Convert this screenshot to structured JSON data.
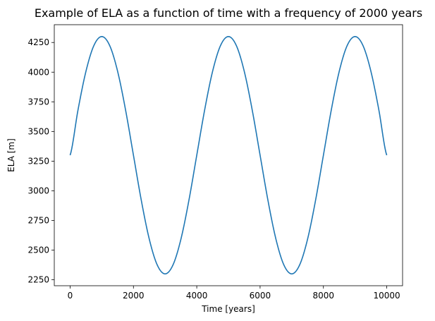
{
  "chart_data": {
    "type": "line",
    "title": "Example of ELA as a function of time with a frequency of 2000 years",
    "xlabel": "Time [years]",
    "ylabel": "ELA [m]",
    "xlim": [
      -500,
      10500
    ],
    "ylim": [
      2200,
      4400
    ],
    "x_ticks": [
      0,
      2000,
      4000,
      6000,
      8000,
      10000
    ],
    "y_ticks": [
      2250,
      2500,
      2750,
      3000,
      3250,
      3500,
      3750,
      4000,
      4250
    ],
    "grid": false,
    "line_color": "#1f77b4",
    "series": [
      {
        "x": [
          0,
          250,
          500,
          750,
          1000,
          1250,
          1500,
          1750,
          2000,
          2250,
          2500,
          2750,
          3000,
          3250,
          3500,
          3750,
          4000,
          4250,
          4500,
          4750,
          5000,
          5250,
          5500,
          5750,
          6000,
          6250,
          6500,
          6750,
          7000,
          7250,
          7500,
          7750,
          8000,
          8250,
          8500,
          8750,
          9000,
          9250,
          9500,
          9750,
          10000
        ],
        "y": [
          3300,
          3683,
          4007,
          4224,
          4300,
          4224,
          4007,
          3683,
          3300,
          2917,
          2593,
          2376,
          2300,
          2376,
          2593,
          2917,
          3300,
          3683,
          4007,
          4224,
          4300,
          4224,
          4007,
          3683,
          3300,
          2917,
          2593,
          2376,
          2300,
          2376,
          2593,
          2917,
          3300,
          3683,
          4007,
          4224,
          4300,
          4224,
          4007,
          3683,
          3300
        ]
      }
    ]
  }
}
